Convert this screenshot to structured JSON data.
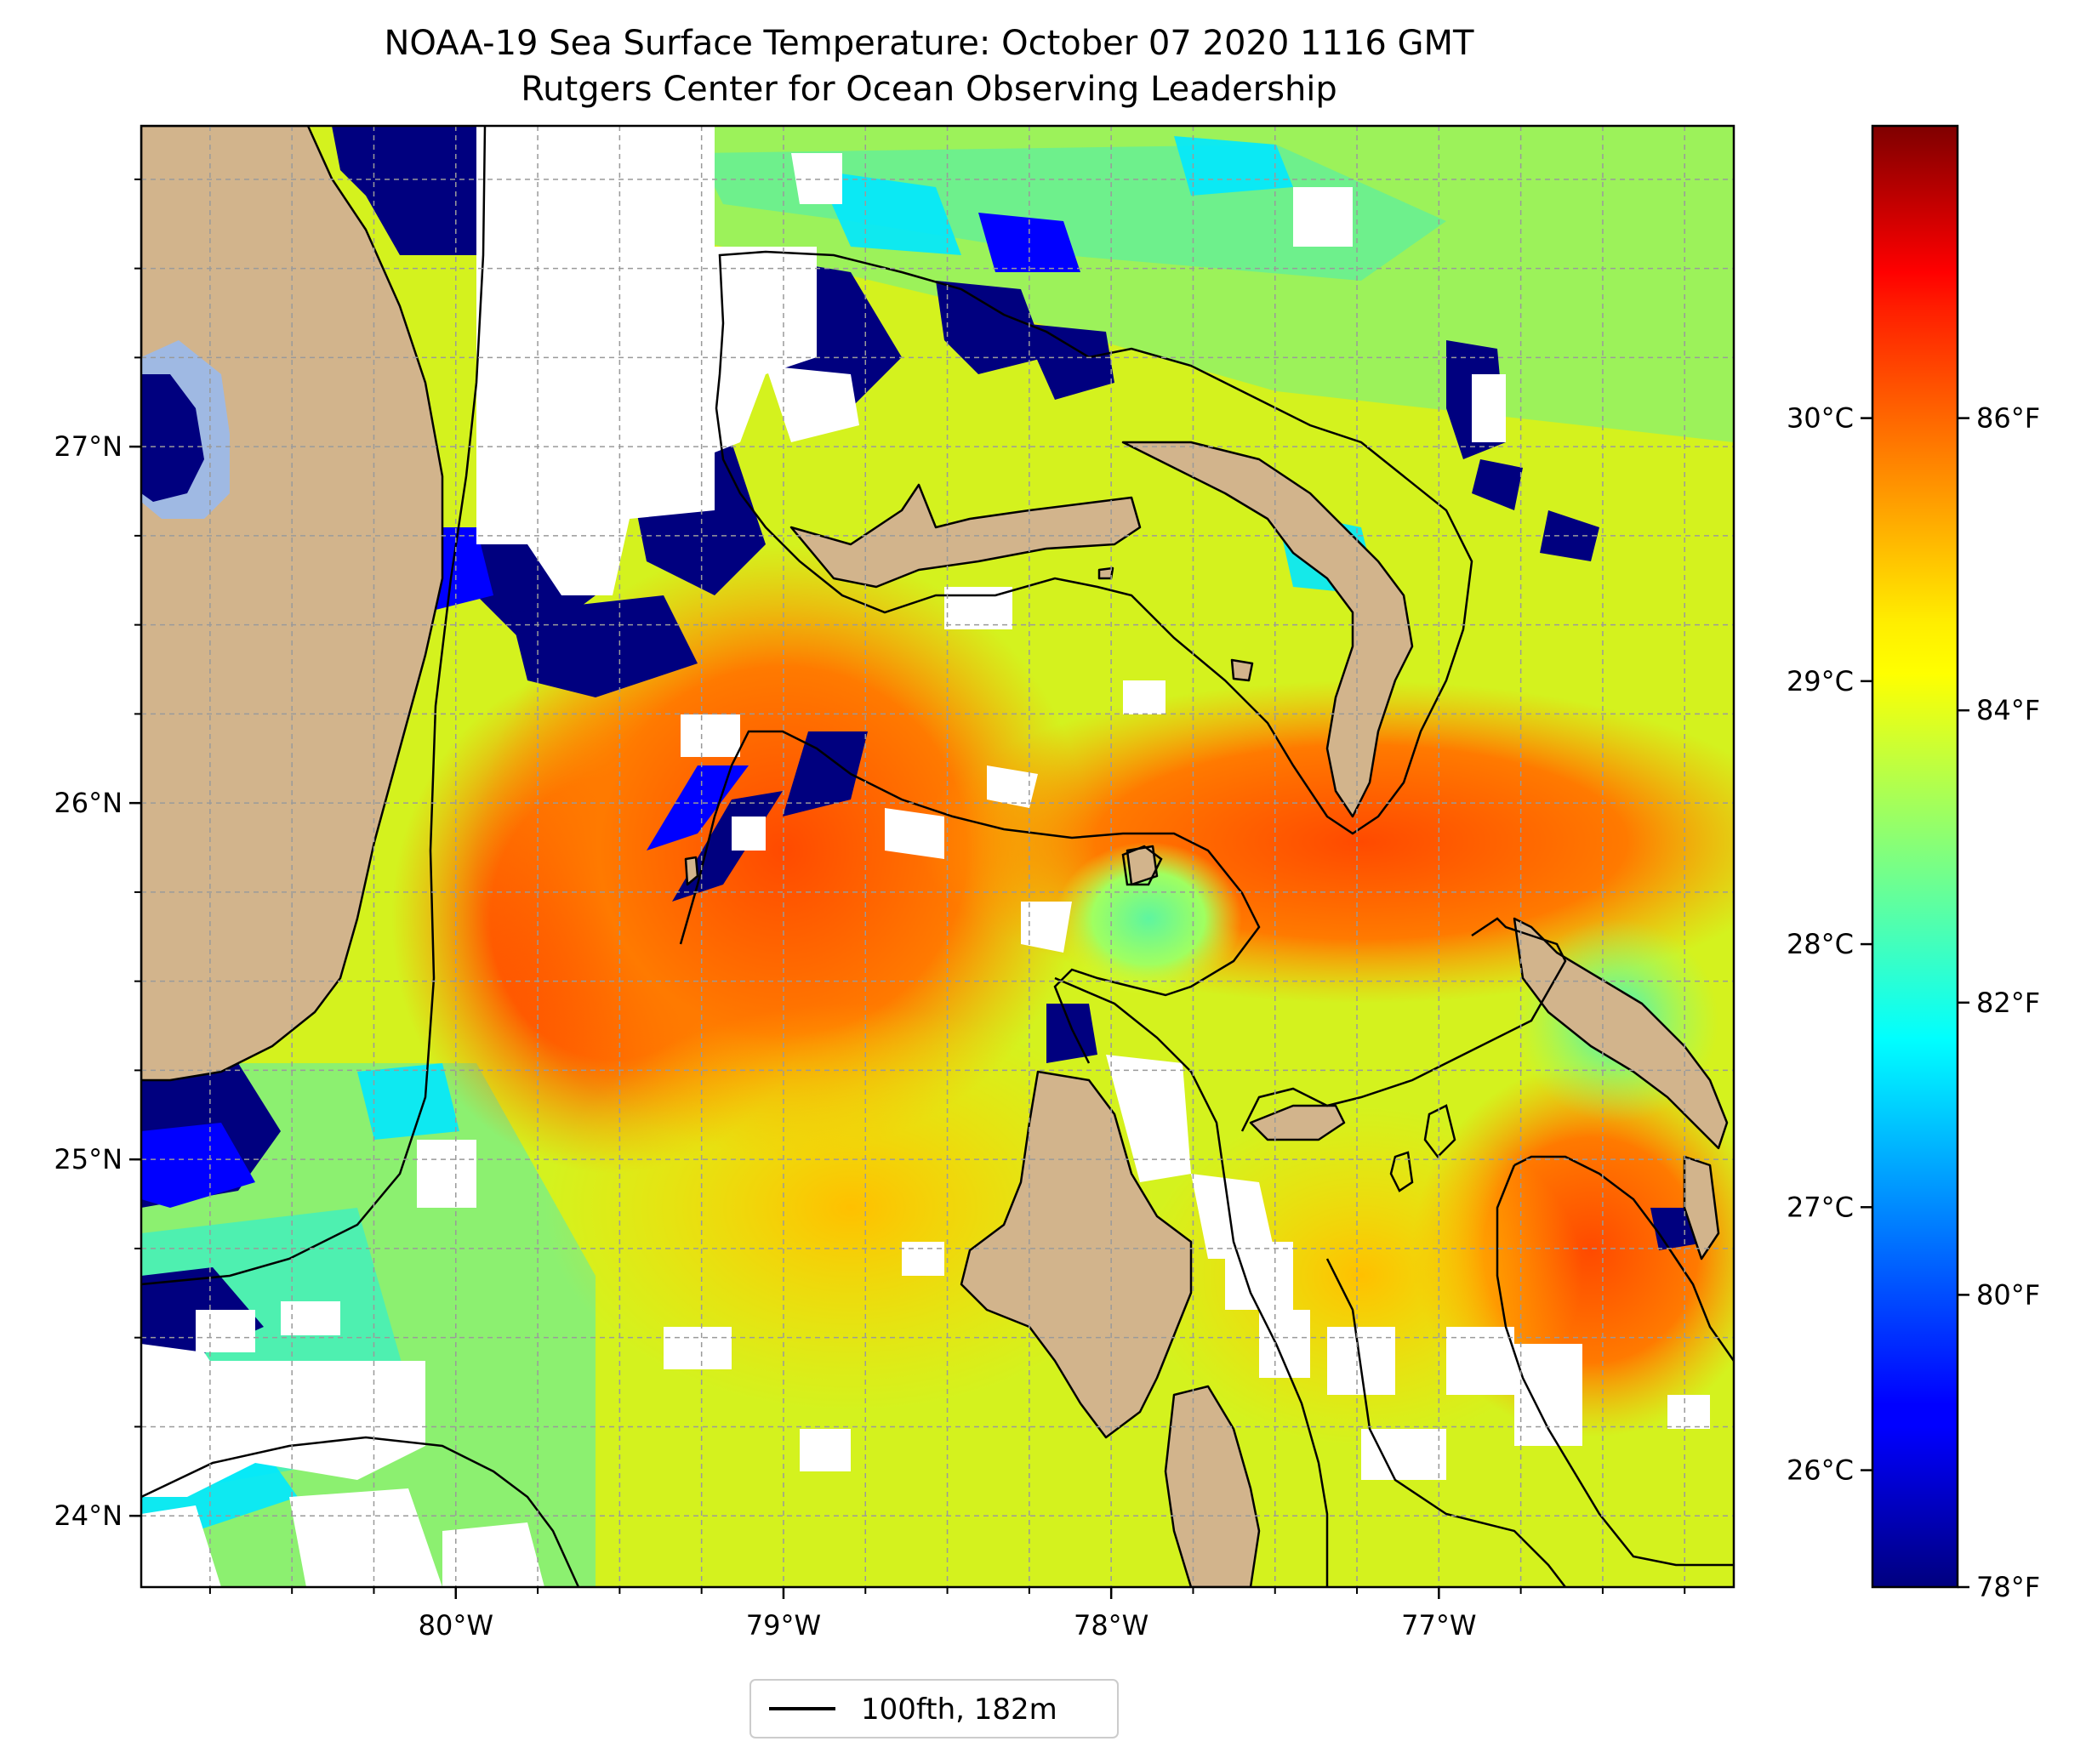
{
  "title": {
    "line1": "NOAA-19 Sea Surface Temperature: October 07 2020 1116 GMT",
    "line2": "Rutgers Center for Ocean Observing Leadership"
  },
  "map": {
    "lon_range": [
      -80.96,
      -76.1
    ],
    "lat_range": [
      23.8,
      27.9
    ],
    "x_ticks": [
      {
        "value": -80,
        "label": "80°W"
      },
      {
        "value": -79,
        "label": "79°W"
      },
      {
        "value": -78,
        "label": "78°W"
      },
      {
        "value": -77,
        "label": "77°W"
      }
    ],
    "y_ticks": [
      {
        "value": 27,
        "label": "27°N"
      },
      {
        "value": 26,
        "label": "26°N"
      },
      {
        "value": 25,
        "label": "25°N"
      },
      {
        "value": 24,
        "label": "24°N"
      }
    ],
    "gridlines": true,
    "colormap": "jet",
    "land_color": "#d2b48c",
    "no_data_color": "#ffffff",
    "contour_color": "#000000"
  },
  "colorbar": {
    "celsius_ticks": [
      {
        "value": 30,
        "label": "30°C"
      },
      {
        "value": 29,
        "label": "29°C"
      },
      {
        "value": 28,
        "label": "28°C"
      },
      {
        "value": 27,
        "label": "27°C"
      },
      {
        "value": 26,
        "label": "26°C"
      }
    ],
    "fahrenheit_ticks": [
      {
        "value": 86,
        "label": "86°F"
      },
      {
        "value": 84,
        "label": "84°F"
      },
      {
        "value": 82,
        "label": "82°F"
      },
      {
        "value": 80,
        "label": "80°F"
      },
      {
        "value": 78,
        "label": "78°F"
      }
    ],
    "range_f": [
      78,
      88
    ]
  },
  "legend": {
    "label": "100fth, 182m",
    "placement": "bottom-center"
  }
}
